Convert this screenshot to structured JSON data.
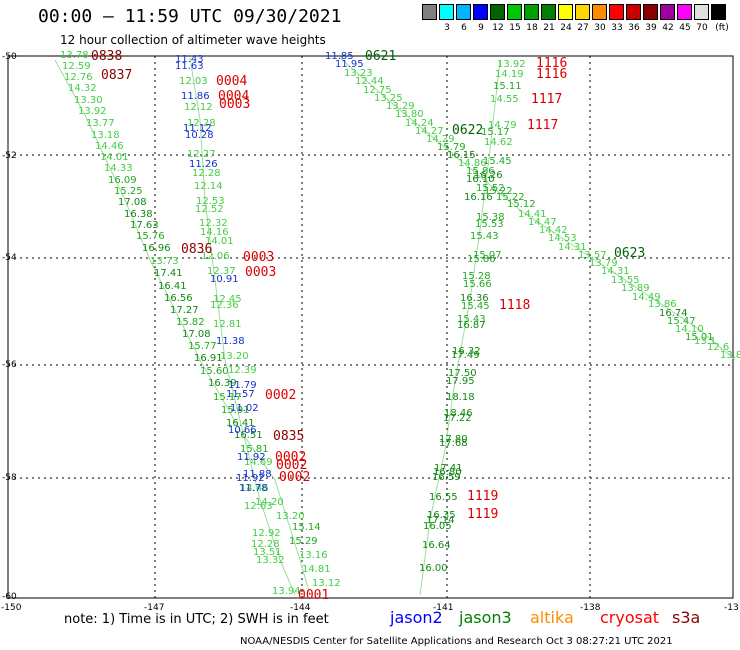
{
  "header": {
    "title": "00:00 – 11:59 UTC 09/30/2021",
    "subtitle": "12 hour collection of altimeter wave heights"
  },
  "legend": {
    "unit": "(ft)",
    "swatches": [
      {
        "color": "#808080",
        "label": ""
      },
      {
        "color": "#00ffff",
        "label": "3"
      },
      {
        "color": "#00b4ff",
        "label": "6"
      },
      {
        "color": "#0000ff",
        "label": "9"
      },
      {
        "color": "#006400",
        "label": "12"
      },
      {
        "color": "#00c800",
        "label": "15"
      },
      {
        "color": "#00a000",
        "label": "18"
      },
      {
        "color": "#008000",
        "label": "21"
      },
      {
        "color": "#ffff00",
        "label": "24"
      },
      {
        "color": "#ffd700",
        "label": "27"
      },
      {
        "color": "#ff8c00",
        "label": "30"
      },
      {
        "color": "#ff0000",
        "label": "33"
      },
      {
        "color": "#c80000",
        "label": "36"
      },
      {
        "color": "#8b0000",
        "label": "39"
      },
      {
        "color": "#a000a0",
        "label": "42"
      },
      {
        "color": "#ff00ff",
        "label": "45"
      },
      {
        "color": "#e0e0e0",
        "label": "70"
      },
      {
        "color": "#000000",
        "label": ""
      }
    ]
  },
  "axes": {
    "lat_labels": [
      "-50",
      "-52",
      "-54",
      "-56",
      "-58",
      "-60"
    ],
    "lon_labels": [
      "-150",
      "-147",
      "-144",
      "-141",
      "-138",
      "-13"
    ]
  },
  "observations": [
    {
      "v": "13.78",
      "c": "#44cc44"
    },
    {
      "v": "12.59",
      "c": "#44cc44"
    },
    {
      "v": "12.76",
      "c": "#44cc44"
    },
    {
      "v": "14.32",
      "c": "#44cc44"
    },
    {
      "v": "13.30",
      "c": "#44cc44"
    },
    {
      "v": "13.92",
      "c": "#44cc44"
    },
    {
      "v": "13.77",
      "c": "#44cc44"
    },
    {
      "v": "13.18",
      "c": "#44cc44"
    },
    {
      "v": "14.46",
      "c": "#44cc44"
    },
    {
      "v": "14.01",
      "c": "#44cc44"
    },
    {
      "v": "14.33",
      "c": "#44cc44"
    },
    {
      "v": "16.09",
      "c": "#22aa22"
    },
    {
      "v": "15.25",
      "c": "#22aa22"
    },
    {
      "v": "17.08",
      "c": "#118811"
    },
    {
      "v": "16.38",
      "c": "#118811"
    },
    {
      "v": "17.63",
      "c": "#118811"
    },
    {
      "v": "15.76",
      "c": "#22aa22"
    },
    {
      "v": "16.96",
      "c": "#118811"
    },
    {
      "v": "13.73",
      "c": "#44cc44"
    },
    {
      "v": "17.41",
      "c": "#118811"
    },
    {
      "v": "16.41",
      "c": "#118811"
    },
    {
      "v": "16.56",
      "c": "#118811"
    },
    {
      "v": "17.27",
      "c": "#118811"
    },
    {
      "v": "15.82",
      "c": "#22aa22"
    },
    {
      "v": "17.08",
      "c": "#118811"
    },
    {
      "v": "15.77",
      "c": "#22aa22"
    },
    {
      "v": "16.91",
      "c": "#118811"
    },
    {
      "v": "15.60",
      "c": "#22aa22"
    },
    {
      "v": "16.39",
      "c": "#118811"
    },
    {
      "v": "15.17",
      "c": "#22aa22"
    },
    {
      "v": "15.91",
      "c": "#22aa22"
    },
    {
      "v": "16.41",
      "c": "#118811"
    },
    {
      "v": "16.51",
      "c": "#118811"
    },
    {
      "v": "15.81",
      "c": "#22aa22"
    },
    {
      "v": "14.69",
      "c": "#44cc44"
    },
    {
      "v": "14.46",
      "c": "#44cc44"
    },
    {
      "v": "14.20",
      "c": "#44cc44"
    },
    {
      "v": "12.63",
      "c": "#44cc44"
    },
    {
      "v": "13.20",
      "c": "#44cc44"
    },
    {
      "v": "12.92",
      "c": "#44cc44"
    },
    {
      "v": "12.28",
      "c": "#44cc44"
    },
    {
      "v": "13.51",
      "c": "#44cc44"
    },
    {
      "v": "13.32",
      "c": "#44cc44"
    },
    {
      "v": "15.14",
      "c": "#22aa22"
    },
    {
      "v": "15.29",
      "c": "#22aa22"
    },
    {
      "v": "13.16",
      "c": "#44cc44"
    },
    {
      "v": "14.81",
      "c": "#44cc44"
    },
    {
      "v": "13.12",
      "c": "#44cc44"
    },
    {
      "v": "13.94",
      "c": "#44cc44"
    },
    {
      "v": "11.43",
      "c": "#1133cc"
    },
    {
      "v": "11.63",
      "c": "#1133cc"
    },
    {
      "v": "12.03",
      "c": "#44cc44"
    },
    {
      "v": "11.86",
      "c": "#1133cc"
    },
    {
      "v": "12.12",
      "c": "#44cc44"
    },
    {
      "v": "12.28",
      "c": "#44cc44"
    },
    {
      "v": "11.12",
      "c": "#1133cc"
    },
    {
      "v": "10.28",
      "c": "#1133cc"
    },
    {
      "v": "12.27",
      "c": "#44cc44"
    },
    {
      "v": "11.26",
      "c": "#1133cc"
    },
    {
      "v": "12.28",
      "c": "#44cc44"
    },
    {
      "v": "12.14",
      "c": "#44cc44"
    },
    {
      "v": "12.53",
      "c": "#44cc44"
    },
    {
      "v": "12.52",
      "c": "#44cc44"
    },
    {
      "v": "12.32",
      "c": "#44cc44"
    },
    {
      "v": "14.16",
      "c": "#44cc44"
    },
    {
      "v": "14.01",
      "c": "#44cc44"
    },
    {
      "v": "12.06",
      "c": "#44cc44"
    },
    {
      "v": "12.37",
      "c": "#44cc44"
    },
    {
      "v": "10.91",
      "c": "#1133cc"
    },
    {
      "v": "12.45",
      "c": "#44cc44"
    },
    {
      "v": "12.36",
      "c": "#44cc44"
    },
    {
      "v": "12.81",
      "c": "#44cc44"
    },
    {
      "v": "11.38",
      "c": "#1133cc"
    },
    {
      "v": "13.20",
      "c": "#44cc44"
    },
    {
      "v": "12.39",
      "c": "#44cc44"
    },
    {
      "v": "11.79",
      "c": "#1133cc"
    },
    {
      "v": "11.57",
      "c": "#1133cc"
    },
    {
      "v": "11.02",
      "c": "#1133cc"
    },
    {
      "v": "10.66",
      "c": "#1133cc"
    },
    {
      "v": "11.92",
      "c": "#1133cc"
    },
    {
      "v": "11.88",
      "c": "#1133cc"
    },
    {
      "v": "11.92",
      "c": "#1133cc"
    },
    {
      "v": "11.78",
      "c": "#1133cc"
    },
    {
      "v": "11.85",
      "c": "#1133cc"
    },
    {
      "v": "11.95",
      "c": "#1133cc"
    },
    {
      "v": "13.23",
      "c": "#44cc44"
    },
    {
      "v": "12.44",
      "c": "#44cc44"
    },
    {
      "v": "12.75",
      "c": "#44cc44"
    },
    {
      "v": "13.25",
      "c": "#44cc44"
    },
    {
      "v": "13.29",
      "c": "#44cc44"
    },
    {
      "v": "13.80",
      "c": "#44cc44"
    },
    {
      "v": "14.24",
      "c": "#44cc44"
    },
    {
      "v": "14.27",
      "c": "#44cc44"
    },
    {
      "v": "14.29",
      "c": "#44cc44"
    },
    {
      "v": "15.79",
      "c": "#22aa22"
    },
    {
      "v": "16.15",
      "c": "#118811"
    },
    {
      "v": "14.86",
      "c": "#44cc44"
    },
    {
      "v": "15.86",
      "c": "#22aa22"
    },
    {
      "v": "16.26",
      "c": "#118811"
    },
    {
      "v": "16.10",
      "c": "#118811"
    },
    {
      "v": "15.52",
      "c": "#22aa22"
    },
    {
      "v": "15.22",
      "c": "#22aa22"
    },
    {
      "v": "16.16",
      "c": "#118811"
    },
    {
      "v": "15.22",
      "c": "#22aa22"
    },
    {
      "v": "15.12",
      "c": "#22aa22"
    },
    {
      "v": "14.41",
      "c": "#44cc44"
    },
    {
      "v": "14.47",
      "c": "#44cc44"
    },
    {
      "v": "14.42",
      "c": "#44cc44"
    },
    {
      "v": "14.53",
      "c": "#44cc44"
    },
    {
      "v": "14.31",
      "c": "#44cc44"
    },
    {
      "v": "13.57",
      "c": "#44cc44"
    },
    {
      "v": "13.79",
      "c": "#44cc44"
    },
    {
      "v": "14.31",
      "c": "#44cc44"
    },
    {
      "v": "13.55",
      "c": "#44cc44"
    },
    {
      "v": "13.89",
      "c": "#44cc44"
    },
    {
      "v": "14.49",
      "c": "#44cc44"
    },
    {
      "v": "13.86",
      "c": "#44cc44"
    },
    {
      "v": "16.74",
      "c": "#118811"
    },
    {
      "v": "15.47",
      "c": "#22aa22"
    },
    {
      "v": "14.10",
      "c": "#44cc44"
    },
    {
      "v": "15.01",
      "c": "#22aa22"
    },
    {
      "v": "13.1",
      "c": "#44cc44"
    },
    {
      "v": "12.6",
      "c": "#44cc44"
    },
    {
      "v": "13.87",
      "c": "#44cc44"
    },
    {
      "v": "13.92",
      "c": "#44cc44"
    },
    {
      "v": "14.19",
      "c": "#44cc44"
    },
    {
      "v": "15.11",
      "c": "#22aa22"
    },
    {
      "v": "14.55",
      "c": "#44cc44"
    },
    {
      "v": "14.79",
      "c": "#44cc44"
    },
    {
      "v": "15.17",
      "c": "#22aa22"
    },
    {
      "v": "14.62",
      "c": "#44cc44"
    },
    {
      "v": "15.45",
      "c": "#22aa22"
    },
    {
      "v": "15.38",
      "c": "#22aa22"
    },
    {
      "v": "15.53",
      "c": "#22aa22"
    },
    {
      "v": "15.43",
      "c": "#22aa22"
    },
    {
      "v": "15.07",
      "c": "#22aa22"
    },
    {
      "v": "15.86",
      "c": "#22aa22"
    },
    {
      "v": "15.28",
      "c": "#22aa22"
    },
    {
      "v": "15.66",
      "c": "#22aa22"
    },
    {
      "v": "16.36",
      "c": "#118811"
    },
    {
      "v": "15.45",
      "c": "#22aa22"
    },
    {
      "v": "15.43",
      "c": "#22aa22"
    },
    {
      "v": "16.87",
      "c": "#118811"
    },
    {
      "v": "16.32",
      "c": "#118811"
    },
    {
      "v": "17.49",
      "c": "#118811"
    },
    {
      "v": "17.50",
      "c": "#118811"
    },
    {
      "v": "17.95",
      "c": "#118811"
    },
    {
      "v": "18.18",
      "c": "#118811"
    },
    {
      "v": "18.46",
      "c": "#118811"
    },
    {
      "v": "17.22",
      "c": "#118811"
    },
    {
      "v": "17.80",
      "c": "#118811"
    },
    {
      "v": "17.68",
      "c": "#118811"
    },
    {
      "v": "17.41",
      "c": "#118811"
    },
    {
      "v": "16.80",
      "c": "#118811"
    },
    {
      "v": "16.59",
      "c": "#118811"
    },
    {
      "v": "16.55",
      "c": "#118811"
    },
    {
      "v": "16.35",
      "c": "#118811"
    },
    {
      "v": "17.14",
      "c": "#118811"
    },
    {
      "v": "16.05",
      "c": "#118811"
    },
    {
      "v": "16.64",
      "c": "#118811"
    },
    {
      "v": "16.00",
      "c": "#118811"
    }
  ],
  "times": [
    {
      "t": "0838",
      "c": "#8b0000"
    },
    {
      "t": "0837",
      "c": "#8b0000"
    },
    {
      "t": "0836",
      "c": "#8b0000"
    },
    {
      "t": "0835",
      "c": "#8b0000"
    },
    {
      "t": "0004",
      "c": "#dd0000"
    },
    {
      "t": "0004",
      "c": "#dd0000"
    },
    {
      "t": "0003",
      "c": "#dd0000"
    },
    {
      "t": "0003",
      "c": "#dd0000"
    },
    {
      "t": "0003",
      "c": "#dd0000"
    },
    {
      "t": "0002",
      "c": "#dd0000"
    },
    {
      "t": "0002",
      "c": "#dd0000"
    },
    {
      "t": "0002",
      "c": "#dd0000"
    },
    {
      "t": "0002",
      "c": "#dd0000"
    },
    {
      "t": "0001",
      "c": "#dd0000"
    },
    {
      "t": "0621",
      "c": "#006400"
    },
    {
      "t": "0622",
      "c": "#006400"
    },
    {
      "t": "0623",
      "c": "#006400"
    },
    {
      "t": "1116",
      "c": "#dd0000"
    },
    {
      "t": "1116",
      "c": "#dd0000"
    },
    {
      "t": "1117",
      "c": "#dd0000"
    },
    {
      "t": "1117",
      "c": "#dd0000"
    },
    {
      "t": "1118",
      "c": "#dd0000"
    },
    {
      "t": "1119",
      "c": "#dd0000"
    },
    {
      "t": "1119",
      "c": "#dd0000"
    }
  ],
  "footer": {
    "note": "note: 1) Time is in UTC; 2) SWH is in feet",
    "satellites": [
      {
        "name": "jason2",
        "color": "#0000ff"
      },
      {
        "name": "jason3",
        "color": "#008000"
      },
      {
        "name": "altika",
        "color": "#ff8c00"
      },
      {
        "name": "cryosat",
        "color": "#ff0000"
      },
      {
        "name": "s3a",
        "color": "#8b0000"
      }
    ],
    "credit": "NOAA/NESDIS Center for Satellite Applications and Research   Oct  3 08:27:21 UTC 2021"
  }
}
